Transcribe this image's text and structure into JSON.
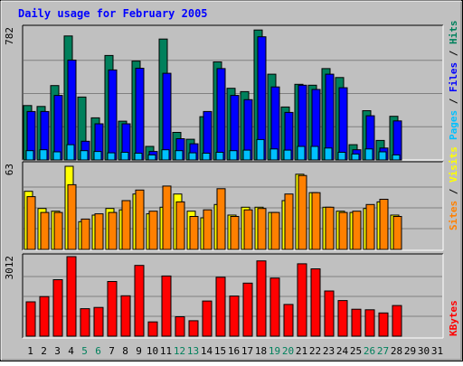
{
  "chart_data": [
    {
      "type": "bar",
      "title": "Daily usage for February 2005",
      "ylabel_parts": [
        {
          "text": "Pages",
          "color": "#00c0ff"
        },
        {
          "text": " / ",
          "color": "#000000"
        },
        {
          "text": "Files",
          "color": "#0000ff"
        },
        {
          "text": " / ",
          "color": "#000000"
        },
        {
          "text": "Hits",
          "color": "#00805c"
        }
      ],
      "ymax": 782,
      "ymax_label": "782",
      "series": [
        {
          "name": "Hits",
          "color": "#00805c",
          "values": [
            320,
            315,
            438,
            730,
            370,
            248,
            615,
            228,
            582,
            80,
            712,
            162,
            122,
            255,
            577,
            422,
            402,
            765,
            505,
            312,
            445,
            440,
            538,
            485,
            90,
            290,
            115,
            257
          ]
        },
        {
          "name": "Files",
          "color": "#0000ff",
          "values": [
            285,
            285,
            380,
            588,
            110,
            213,
            530,
            213,
            540,
            50,
            510,
            125,
            95,
            285,
            538,
            380,
            355,
            725,
            430,
            280,
            440,
            415,
            505,
            425,
            60,
            260,
            70,
            230
          ]
        },
        {
          "name": "Pages",
          "color": "#00c0ff",
          "values": [
            55,
            60,
            48,
            90,
            55,
            50,
            42,
            45,
            40,
            30,
            60,
            55,
            42,
            40,
            45,
            55,
            58,
            120,
            65,
            58,
            80,
            80,
            70,
            45,
            35,
            65,
            48,
            30
          ]
        }
      ]
    },
    {
      "type": "bar",
      "ylabel_parts": [
        {
          "text": "Sites",
          "color": "#ff8000"
        },
        {
          "text": " / ",
          "color": "#000000"
        },
        {
          "text": "Visits",
          "color": "#ffff00"
        }
      ],
      "ymax": 63,
      "ymax_label": "63",
      "series": [
        {
          "name": "Visits",
          "color": "#ffff00",
          "values": [
            44,
            31,
            29,
            63,
            21,
            26,
            31,
            30,
            42,
            27,
            32,
            42,
            29,
            24,
            34,
            26,
            32,
            32,
            28,
            37,
            57,
            43,
            32,
            29,
            28,
            31,
            36,
            26
          ]
        },
        {
          "name": "Sites",
          "color": "#ff8000",
          "values": [
            40,
            28,
            28,
            49,
            23,
            27,
            28,
            37,
            45,
            29,
            48,
            36,
            25,
            30,
            46,
            25,
            30,
            31,
            28,
            42,
            56,
            43,
            32,
            28,
            29,
            34,
            38,
            25
          ]
        }
      ]
    },
    {
      "type": "bar",
      "ylabel_parts": [
        {
          "text": "KBytes",
          "color": "#ff0000"
        }
      ],
      "ymax": 3012,
      "ymax_label": "3012",
      "series": [
        {
          "name": "KBytes",
          "color": "#ff0000",
          "values": [
            1300,
            1500,
            2140,
            3012,
            1040,
            1090,
            2070,
            1530,
            2680,
            540,
            2280,
            735,
            585,
            1330,
            2230,
            1520,
            2010,
            2850,
            2200,
            1200,
            2740,
            2550,
            1710,
            1350,
            1020,
            1000,
            880,
            1160
          ]
        }
      ]
    }
  ],
  "x_axis": {
    "days": [
      "1",
      "2",
      "3",
      "4",
      "5",
      "6",
      "7",
      "8",
      "9",
      "10",
      "11",
      "12",
      "13",
      "14",
      "15",
      "16",
      "17",
      "18",
      "19",
      "20",
      "21",
      "22",
      "23",
      "24",
      "25",
      "26",
      "27",
      "28",
      "29",
      "30",
      "31"
    ],
    "weekend_days": [
      "5",
      "6",
      "12",
      "13",
      "19",
      "20",
      "26",
      "27"
    ],
    "weekday_color": "#000000",
    "weekend_color": "#00805c"
  },
  "colors": {
    "background": "#c0c0c0",
    "title": "#0000ff",
    "gridline": "#808080"
  }
}
